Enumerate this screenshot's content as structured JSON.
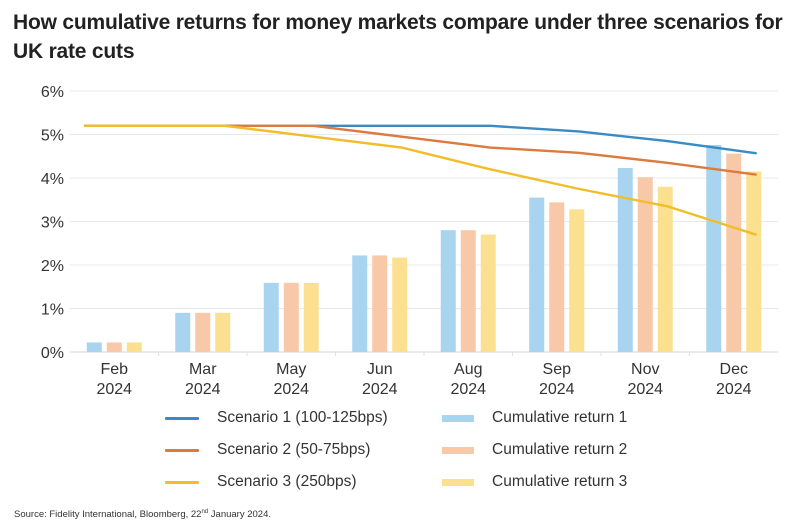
{
  "title": "How cumulative returns for money markets compare under three scenarios for UK rate cuts",
  "source": {
    "prefix": "Source: Fidelity International, Bloomberg, 22",
    "suffix_sup": "nd",
    "rest": " January 2024."
  },
  "chart_data": {
    "type": "bar",
    "title": "How cumulative returns for money markets compare under three scenarios for UK rate cuts",
    "xlabel": "",
    "ylabel": "",
    "ylim": [
      0,
      6
    ],
    "yticks": [
      "0%",
      "1%",
      "2%",
      "3%",
      "4%",
      "5%",
      "6%"
    ],
    "grid": true,
    "legend_position": "bottom",
    "categories": [
      "Feb 2024",
      "Mar 2024",
      "May 2024",
      "Jun 2024",
      "Aug 2024",
      "Sep 2024",
      "Nov 2024",
      "Dec 2024"
    ],
    "category_lines": [
      [
        "Feb",
        "2024"
      ],
      [
        "Mar",
        "2024"
      ],
      [
        "May",
        "2024"
      ],
      [
        "Jun",
        "2024"
      ],
      [
        "Aug",
        "2024"
      ],
      [
        "Sep",
        "2024"
      ],
      [
        "Nov",
        "2024"
      ],
      [
        "Dec",
        "2024"
      ]
    ],
    "bar_series": [
      {
        "name": "Cumulative return 1",
        "color": "#a8d4ef",
        "values": [
          0.22,
          0.9,
          1.59,
          2.22,
          2.8,
          3.55,
          4.23,
          4.76
        ]
      },
      {
        "name": "Cumulative return 2",
        "color": "#f8c9a8",
        "values": [
          0.22,
          0.9,
          1.59,
          2.22,
          2.8,
          3.44,
          4.02,
          4.56
        ]
      },
      {
        "name": "Cumulative return 3",
        "color": "#fbe08f",
        "values": [
          0.22,
          0.9,
          1.59,
          2.17,
          2.7,
          3.28,
          3.8,
          4.15
        ]
      }
    ],
    "line_series": [
      {
        "name": "Scenario 1 (100-125bps)",
        "color": "#3a8bc2",
        "values": [
          5.2,
          5.2,
          5.2,
          5.2,
          5.2,
          5.07,
          4.85,
          4.57
        ]
      },
      {
        "name": "Scenario 2 (50-75bps)",
        "color": "#dd7a3e",
        "values": [
          5.2,
          5.2,
          5.2,
          4.95,
          4.7,
          4.58,
          4.35,
          4.08
        ]
      },
      {
        "name": "Scenario 3 (250bps)",
        "color": "#f2bd2a",
        "values": [
          5.2,
          5.2,
          4.95,
          4.7,
          4.2,
          3.75,
          3.35,
          2.7
        ]
      }
    ]
  },
  "legend": {
    "lines": [
      {
        "label": "Scenario 1 (100-125bps)",
        "color": "#3a8bc2"
      },
      {
        "label": "Scenario 2 (50-75bps)",
        "color": "#dd7a3e"
      },
      {
        "label": "Scenario 3 (250bps)",
        "color": "#f2bd2a"
      }
    ],
    "bars": [
      {
        "label": "Cumulative return 1",
        "color": "#a8d4ef"
      },
      {
        "label": "Cumulative return 2",
        "color": "#f8c9a8"
      },
      {
        "label": "Cumulative return 3",
        "color": "#fbe08f"
      }
    ]
  }
}
